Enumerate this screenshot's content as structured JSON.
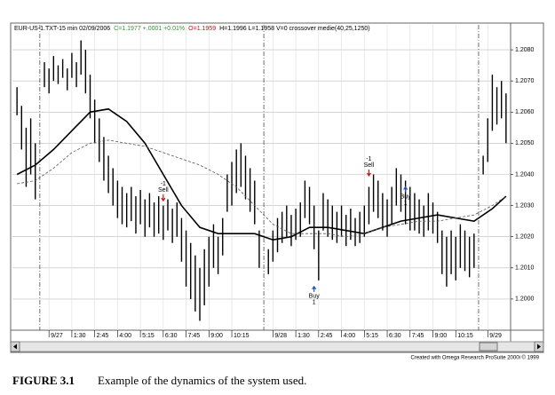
{
  "chart_data": {
    "type": "hilo",
    "header": [
      {
        "text": "EUR-US-1.TXT-15 min  02/09/2006",
        "color": "#000000"
      },
      {
        "text": "C=1.1977 +.0001 +0.01%",
        "color": "#2e9a2e"
      },
      {
        "text": "O=1.1959",
        "color": "#d01010"
      },
      {
        "text": "H=1.1996  L=1.1958  V=0  crossover medie(40,25,1250)",
        "color": "#000000"
      }
    ],
    "credit": "Created with Omega Research ProSuite 2000i © 1999",
    "caption_label": "FIGURE 3.1",
    "caption_text": "Example of the dynamics of the system used.",
    "x": [
      0,
      1,
      2,
      3,
      4,
      5,
      6,
      7,
      8,
      9,
      10,
      11,
      12,
      13,
      14,
      15,
      16,
      17,
      18,
      19,
      20,
      21,
      22,
      23,
      24,
      25,
      26,
      27,
      28,
      29,
      30,
      31,
      32,
      33,
      34,
      35,
      36,
      37,
      38,
      39,
      40,
      41,
      42,
      43,
      44,
      45,
      46,
      47,
      48,
      49,
      50,
      51,
      52,
      53,
      54,
      55,
      56,
      57,
      58,
      59,
      60,
      61,
      62,
      63,
      64,
      65,
      66,
      67,
      68,
      69,
      70,
      71,
      72,
      73,
      74,
      75,
      76,
      77,
      78,
      79,
      80,
      81,
      82,
      83,
      84,
      85,
      86,
      87,
      88,
      89,
      90,
      91,
      92,
      93,
      94,
      95,
      96,
      97,
      98,
      99,
      100,
      101,
      102,
      103,
      104,
      105,
      106,
      107
    ],
    "high": [
      1.2068,
      1.2062,
      1.2055,
      1.2058,
      1.205,
      null,
      1.2076,
      1.2074,
      1.2078,
      1.2075,
      1.2077,
      1.2074,
      1.2079,
      1.2076,
      1.2083,
      1.208,
      1.2072,
      1.2064,
      1.2058,
      1.2052,
      1.2046,
      1.2042,
      1.2038,
      1.2036,
      1.2034,
      1.2036,
      1.2033,
      1.2035,
      1.2032,
      1.2034,
      1.2031,
      1.2033,
      1.203,
      1.2032,
      1.2029,
      1.2031,
      1.2026,
      1.2022,
      1.2018,
      1.2014,
      1.201,
      1.2016,
      1.202,
      1.2024,
      1.202,
      1.2026,
      1.204,
      1.2044,
      1.2048,
      1.205,
      1.2046,
      1.2042,
      1.2038,
      1.2022,
      null,
      1.2016,
      1.2022,
      1.2026,
      1.2028,
      1.203,
      1.2027,
      1.2029,
      1.2031,
      1.2038,
      1.2036,
      1.203,
      1.2022,
      1.2034,
      1.2032,
      1.203,
      1.2028,
      1.203,
      1.2027,
      1.2029,
      1.2026,
      1.2028,
      1.203,
      1.2036,
      1.204,
      1.2038,
      1.2034,
      1.2032,
      1.2036,
      1.2042,
      1.204,
      1.2038,
      1.2036,
      1.2034,
      1.2032,
      1.203,
      1.2034,
      1.2031,
      1.2028,
      1.2022,
      1.202,
      1.2022,
      1.202,
      1.2024,
      1.2022,
      1.202,
      1.2021,
      null,
      1.2046,
      1.2058,
      1.2072,
      1.2068,
      1.207,
      1.2066
    ],
    "low": [
      1.2059,
      1.2048,
      1.2036,
      1.204,
      1.2032,
      null,
      1.2068,
      1.2066,
      1.207,
      1.2069,
      1.2071,
      1.2067,
      1.2071,
      1.2068,
      1.2072,
      1.2066,
      1.2058,
      1.205,
      1.2044,
      1.2038,
      1.2034,
      1.203,
      1.2026,
      1.2024,
      1.2023,
      1.2025,
      1.2021,
      1.2024,
      1.202,
      1.2023,
      1.202,
      1.2021,
      1.2019,
      1.2022,
      1.2018,
      1.202,
      1.2012,
      1.2004,
      1.2,
      1.1996,
      1.1993,
      1.1998,
      1.2004,
      1.201,
      1.2008,
      1.2014,
      1.2028,
      1.203,
      1.2034,
      1.2036,
      1.2032,
      1.2028,
      1.2024,
      1.201,
      null,
      1.2008,
      1.2012,
      1.2015,
      1.2018,
      1.202,
      1.2017,
      1.2019,
      1.202,
      1.2026,
      1.2024,
      1.2016,
      1.2006,
      1.2022,
      1.202,
      1.2019,
      1.2018,
      1.202,
      1.2017,
      1.2019,
      1.2017,
      1.2018,
      1.202,
      1.2024,
      1.2028,
      1.2026,
      1.2022,
      1.202,
      1.2024,
      1.203,
      1.2028,
      1.2024,
      1.2022,
      1.2022,
      1.2021,
      1.202,
      1.2022,
      1.2021,
      1.2018,
      1.2008,
      1.2004,
      1.2008,
      1.2006,
      1.201,
      1.2009,
      1.2007,
      1.201,
      null,
      1.204,
      1.2044,
      1.2054,
      1.2056,
      1.2058,
      1.205
    ],
    "bar_color": "#000000",
    "series": [
      {
        "style": "solid",
        "color": "#000000",
        "x": [
          0,
          4,
          8,
          12,
          16,
          20,
          24,
          28,
          32,
          36,
          40,
          44,
          48,
          52,
          56,
          60,
          64,
          68,
          72,
          76,
          80,
          84,
          88,
          92,
          96,
          100,
          104,
          107
        ],
        "values": [
          1.204,
          1.2043,
          1.2048,
          1.2054,
          1.206,
          1.2061,
          1.2057,
          1.205,
          1.204,
          1.203,
          1.2023,
          1.2021,
          1.2021,
          1.2021,
          1.2019,
          1.202,
          1.2023,
          1.2023,
          1.2022,
          1.2021,
          1.2023,
          1.2025,
          1.2026,
          1.2027,
          1.2026,
          1.2025,
          1.2029,
          1.2033
        ]
      },
      {
        "style": "dashed",
        "color": "#555555",
        "x": [
          0,
          4,
          8,
          12,
          16,
          20,
          24,
          28,
          32,
          36,
          40,
          44,
          48,
          52,
          56,
          60,
          64,
          68,
          72,
          76,
          80,
          84,
          88,
          92,
          96,
          100,
          104,
          107
        ],
        "values": [
          1.2037,
          1.2038,
          1.2042,
          1.2047,
          1.205,
          1.2051,
          1.205,
          1.2049,
          1.2047,
          1.2045,
          1.2043,
          1.204,
          1.2036,
          1.203,
          1.2024,
          1.2021,
          1.2021,
          1.2021,
          1.202,
          1.2021,
          1.2023,
          1.2024,
          1.2025,
          1.2025,
          1.2026,
          1.2027,
          1.203,
          1.2033
        ]
      }
    ],
    "annotations": [
      {
        "qty": "-1",
        "label": "Sell",
        "x": 32,
        "y": 1.2037,
        "color": "#d01010"
      },
      {
        "qty": "1",
        "label": "Buy",
        "x": 65,
        "y": 1.2004,
        "color": "#2050c0"
      },
      {
        "qty": "-1",
        "label": "Sell",
        "x": 77,
        "y": 1.2045,
        "color": "#d01010"
      },
      {
        "qty": "1",
        "label": "Buy",
        "x": 85,
        "y": 1.2036,
        "color": "#2050c0"
      }
    ],
    "session_breaks": [
      5,
      54,
      101
    ],
    "xlim": [
      -1,
      108
    ],
    "xticks": [
      {
        "value": 7,
        "label": "9/27"
      },
      {
        "value": 12,
        "label": "1:30"
      },
      {
        "value": 17,
        "label": "2:45"
      },
      {
        "value": 22,
        "label": "4:00"
      },
      {
        "value": 27,
        "label": "5:15"
      },
      {
        "value": 32,
        "label": "6:30"
      },
      {
        "value": 37,
        "label": "7:45"
      },
      {
        "value": 42,
        "label": "9:00"
      },
      {
        "value": 47,
        "label": "10:15"
      },
      {
        "value": 56,
        "label": "9/28"
      },
      {
        "value": 61,
        "label": "1:30"
      },
      {
        "value": 66,
        "label": "2:45"
      },
      {
        "value": 71,
        "label": "4:00"
      },
      {
        "value": 76,
        "label": "5:15"
      },
      {
        "value": 81,
        "label": "6:30"
      },
      {
        "value": 86,
        "label": "7:45"
      },
      {
        "value": 91,
        "label": "9:00"
      },
      {
        "value": 96,
        "label": "10:15"
      },
      {
        "value": 103,
        "label": "9/29"
      }
    ],
    "ylim": [
      1.199,
      1.2088
    ],
    "yticks": [
      {
        "value": 1.2,
        "label": "1.2000"
      },
      {
        "value": 1.201,
        "label": "1.2010"
      },
      {
        "value": 1.202,
        "label": "1.2020"
      },
      {
        "value": 1.203,
        "label": "1.2030"
      },
      {
        "value": 1.204,
        "label": "1.2040"
      },
      {
        "value": 1.205,
        "label": "1.2050"
      },
      {
        "value": 1.206,
        "label": "1.2060"
      },
      {
        "value": 1.207,
        "label": "1.2070"
      },
      {
        "value": 1.208,
        "label": "1.2080"
      }
    ],
    "grid": true
  }
}
